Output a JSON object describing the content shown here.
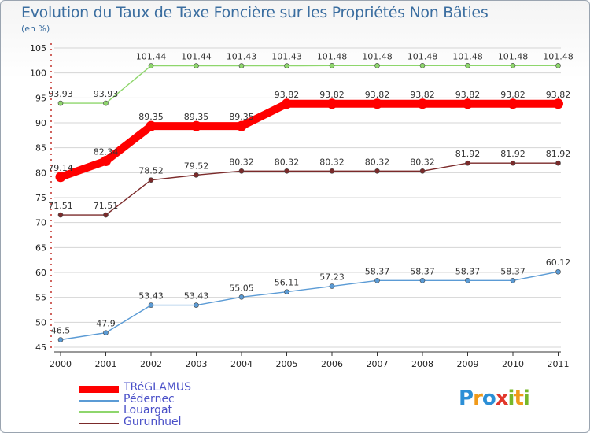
{
  "title": "Evolution du Taux de Taxe Foncière sur les Propriétés Non Bâties",
  "subtitle": "(en %)",
  "logo": {
    "text": "Proxiti",
    "letters": [
      "P",
      "r",
      "o",
      "x",
      "i",
      "t",
      "i"
    ],
    "colors": [
      "#2c8fd6",
      "#f09a1a",
      "#2c8fd6",
      "#e2372b",
      "#77b829",
      "#f09a1a",
      "#77b829"
    ]
  },
  "chart_data": {
    "type": "line",
    "title": "Evolution du Taux de Taxe Foncière sur les Propriétés Non Bâties",
    "ylabel": "(en %)",
    "xlabel": "",
    "ylim": [
      45,
      105
    ],
    "yticks": [
      "45",
      "50",
      "55",
      "60",
      "65",
      "70",
      "75",
      "80",
      "85",
      "90",
      "95",
      "100",
      "105"
    ],
    "categories": [
      "2000",
      "2001",
      "2002",
      "2003",
      "2004",
      "2005",
      "2006",
      "2007",
      "2008",
      "2009",
      "2010",
      "2011"
    ],
    "grid": "horizontal",
    "legend_position": "bottom-left",
    "series": [
      {
        "name": "TRéGLAMUS",
        "color": "#ff0000",
        "emphasis": true,
        "values": [
          79.14,
          82.34,
          89.35,
          89.35,
          89.35,
          93.82,
          93.82,
          93.82,
          93.82,
          93.82,
          93.82,
          93.82
        ],
        "labels": [
          "79.14",
          "82.34",
          "89.35",
          "89.35",
          "89.35",
          "93.82",
          "93.82",
          "93.82",
          "93.82",
          "93.82",
          "93.82",
          "93.82"
        ]
      },
      {
        "name": "Pédernec",
        "color": "#5b9bd5",
        "values": [
          46.5,
          47.9,
          53.43,
          53.43,
          55.05,
          56.11,
          57.23,
          58.37,
          58.37,
          58.37,
          58.37,
          60.12
        ],
        "labels": [
          "46.5",
          "47.9",
          "53.43",
          "53.43",
          "55.05",
          "56.11",
          "57.23",
          "58.37",
          "58.37",
          "58.37",
          "58.37",
          "60.12"
        ]
      },
      {
        "name": "Louargat",
        "color": "#8ed66c",
        "values": [
          93.93,
          93.93,
          101.44,
          101.44,
          101.43,
          101.43,
          101.48,
          101.48,
          101.48,
          101.48,
          101.48,
          101.48
        ],
        "labels": [
          "93.93",
          "93.93",
          "101.44",
          "101.44",
          "101.43",
          "101.43",
          "101.48",
          "101.48",
          "101.48",
          "101.48",
          "101.48",
          "101.48"
        ]
      },
      {
        "name": "Gurunhuel",
        "color": "#7b2a2a",
        "values": [
          71.51,
          71.51,
          78.52,
          79.52,
          80.32,
          80.32,
          80.32,
          80.32,
          80.32,
          81.92,
          81.92,
          81.92
        ],
        "labels": [
          "71.51",
          "71.51",
          "78.52",
          "79.52",
          "80.32",
          "80.32",
          "80.32",
          "80.32",
          "80.32",
          "81.92",
          "81.92",
          "81.92"
        ]
      }
    ]
  }
}
